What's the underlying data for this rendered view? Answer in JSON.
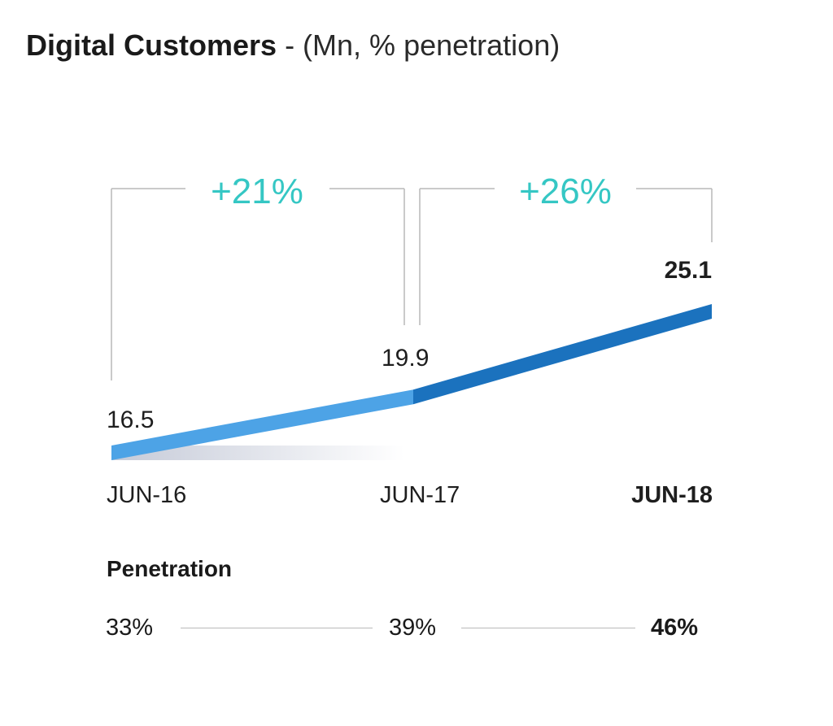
{
  "header": {
    "title_main": "Digital Customers",
    "title_sub": " - (Mn, % penetration)"
  },
  "growth": [
    {
      "label": "+21%",
      "from": "JUN-16",
      "to": "JUN-17"
    },
    {
      "label": "+26%",
      "from": "JUN-17",
      "to": "JUN-18"
    }
  ],
  "colors": {
    "growth_text": "#35c7c4",
    "line_light": "#4da3e6",
    "line_dark": "#1b72be",
    "bracket": "#b9b9b9"
  },
  "chart_data": {
    "type": "line",
    "title": "Digital Customers",
    "subtitle": "(Mn, % penetration)",
    "categories": [
      "JUN-16",
      "JUN-17",
      "JUN-18"
    ],
    "values": [
      16.5,
      19.9,
      25.1
    ],
    "value_labels": [
      "16.5",
      "19.9",
      "25.1"
    ],
    "growth_annotations": [
      "+21%",
      "+26%"
    ],
    "grid": false,
    "legend": "none"
  },
  "penetration": {
    "title": "Penetration",
    "values": [
      "33%",
      "39%",
      "46%"
    ]
  }
}
